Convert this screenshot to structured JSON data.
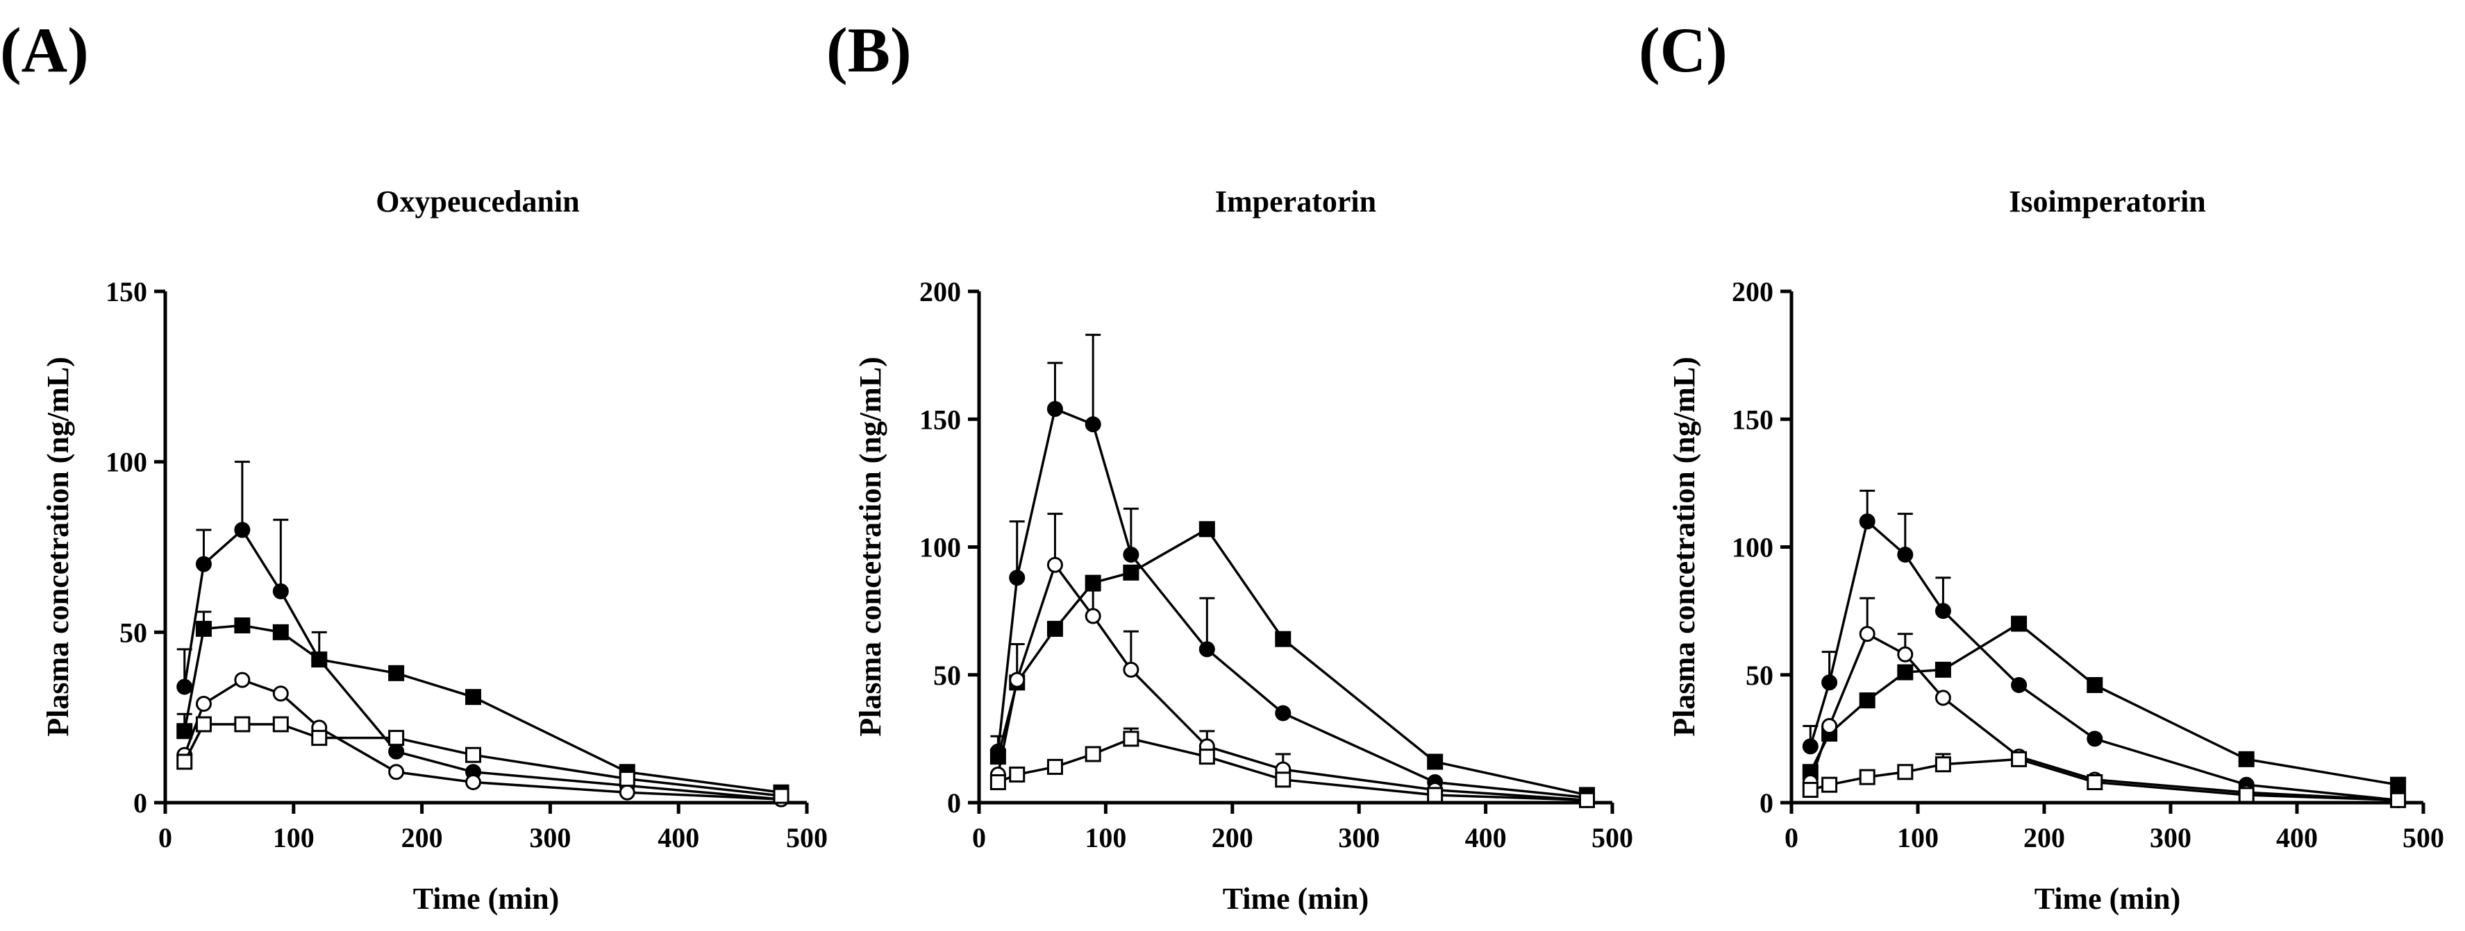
{
  "chart_data": [
    {
      "type": "line",
      "panel_label": "(A)",
      "title": "Oxypeucedanin",
      "xlabel": "Time (min)",
      "ylabel": "Plasma concetration (ng/mL)",
      "xlim": [
        0,
        500
      ],
      "ylim": [
        0,
        150
      ],
      "x_ticks": [
        0,
        100,
        200,
        300,
        400,
        500
      ],
      "y_ticks": [
        0,
        50,
        100,
        150
      ],
      "grid": false,
      "series": [
        {
          "marker": "filled-circle",
          "x": [
            15,
            30,
            60,
            90,
            120,
            180,
            240,
            360,
            480
          ],
          "y": [
            34,
            70,
            80,
            62,
            42,
            15,
            9,
            5,
            1
          ],
          "err": [
            11,
            10,
            20,
            21,
            8,
            0,
            0,
            0,
            0
          ]
        },
        {
          "marker": "filled-square",
          "x": [
            15,
            30,
            60,
            90,
            120,
            180,
            240,
            360,
            480
          ],
          "y": [
            21,
            51,
            52,
            50,
            42,
            38,
            31,
            9,
            3
          ],
          "err": [
            5,
            5,
            0,
            0,
            0,
            0,
            0,
            0,
            0
          ]
        },
        {
          "marker": "open-circle",
          "x": [
            15,
            30,
            60,
            90,
            120,
            180,
            240,
            360,
            480
          ],
          "y": [
            14,
            29,
            36,
            32,
            22,
            9,
            6,
            3,
            1
          ],
          "err": [
            0,
            0,
            0,
            0,
            0,
            0,
            0,
            0,
            0
          ]
        },
        {
          "marker": "open-square",
          "x": [
            15,
            30,
            60,
            90,
            120,
            180,
            240,
            360,
            480
          ],
          "y": [
            12,
            23,
            23,
            23,
            19,
            19,
            14,
            7,
            2
          ],
          "err": [
            0,
            0,
            0,
            0,
            0,
            0,
            0,
            0,
            0
          ]
        }
      ]
    },
    {
      "type": "line",
      "panel_label": "(B)",
      "title": "Imperatorin",
      "xlabel": "Time (min)",
      "ylabel": "Plasma concetration (ng/mL)",
      "xlim": [
        0,
        500
      ],
      "ylim": [
        0,
        200
      ],
      "x_ticks": [
        0,
        100,
        200,
        300,
        400,
        500
      ],
      "y_ticks": [
        0,
        50,
        100,
        150,
        200
      ],
      "grid": false,
      "series": [
        {
          "marker": "filled-circle",
          "x": [
            15,
            30,
            60,
            90,
            120,
            180,
            240,
            360,
            480
          ],
          "y": [
            20,
            88,
            154,
            148,
            97,
            60,
            35,
            8,
            2
          ],
          "err": [
            6,
            22,
            18,
            35,
            18,
            20,
            0,
            0,
            0
          ]
        },
        {
          "marker": "filled-square",
          "x": [
            15,
            30,
            60,
            90,
            120,
            180,
            240,
            360,
            480
          ],
          "y": [
            18,
            47,
            68,
            86,
            90,
            107,
            64,
            16,
            3
          ],
          "err": [
            0,
            15,
            0,
            0,
            0,
            0,
            0,
            0,
            0
          ]
        },
        {
          "marker": "open-circle",
          "x": [
            15,
            30,
            60,
            90,
            120,
            180,
            240,
            360,
            480
          ],
          "y": [
            11,
            48,
            93,
            73,
            52,
            22,
            13,
            5,
            1
          ],
          "err": [
            0,
            0,
            20,
            10,
            15,
            6,
            6,
            0,
            0
          ]
        },
        {
          "marker": "open-square",
          "x": [
            15,
            30,
            60,
            90,
            120,
            180,
            240,
            360,
            480
          ],
          "y": [
            8,
            11,
            14,
            19,
            25,
            18,
            9,
            3,
            1
          ],
          "err": [
            0,
            0,
            0,
            0,
            4,
            0,
            0,
            0,
            0
          ]
        }
      ]
    },
    {
      "type": "line",
      "panel_label": "(C)",
      "title": "Isoimperatorin",
      "xlabel": "Time (min)",
      "ylabel": "Plasma concetration (ng/mL)",
      "xlim": [
        0,
        500
      ],
      "ylim": [
        0,
        200
      ],
      "x_ticks": [
        0,
        100,
        200,
        300,
        400,
        500
      ],
      "y_ticks": [
        0,
        50,
        100,
        150,
        200
      ],
      "grid": false,
      "series": [
        {
          "marker": "filled-circle",
          "x": [
            15,
            30,
            60,
            90,
            120,
            180,
            240,
            360,
            480
          ],
          "y": [
            22,
            47,
            110,
            97,
            75,
            46,
            25,
            7,
            1
          ],
          "err": [
            8,
            12,
            12,
            16,
            13,
            0,
            0,
            0,
            0
          ]
        },
        {
          "marker": "filled-square",
          "x": [
            15,
            30,
            60,
            90,
            120,
            180,
            240,
            360,
            480
          ],
          "y": [
            12,
            27,
            40,
            51,
            52,
            70,
            46,
            17,
            7
          ],
          "err": [
            0,
            0,
            0,
            0,
            0,
            0,
            0,
            0,
            0
          ]
        },
        {
          "marker": "open-circle",
          "x": [
            15,
            30,
            60,
            90,
            120,
            180,
            240,
            360,
            480
          ],
          "y": [
            8,
            30,
            66,
            58,
            41,
            18,
            9,
            4,
            1
          ],
          "err": [
            0,
            0,
            14,
            8,
            0,
            0,
            0,
            0,
            0
          ]
        },
        {
          "marker": "open-square",
          "x": [
            15,
            30,
            60,
            90,
            120,
            180,
            240,
            360,
            480
          ],
          "y": [
            5,
            7,
            10,
            12,
            15,
            17,
            8,
            3,
            1
          ],
          "err": [
            0,
            0,
            0,
            0,
            4,
            0,
            0,
            0,
            0
          ]
        }
      ]
    }
  ]
}
